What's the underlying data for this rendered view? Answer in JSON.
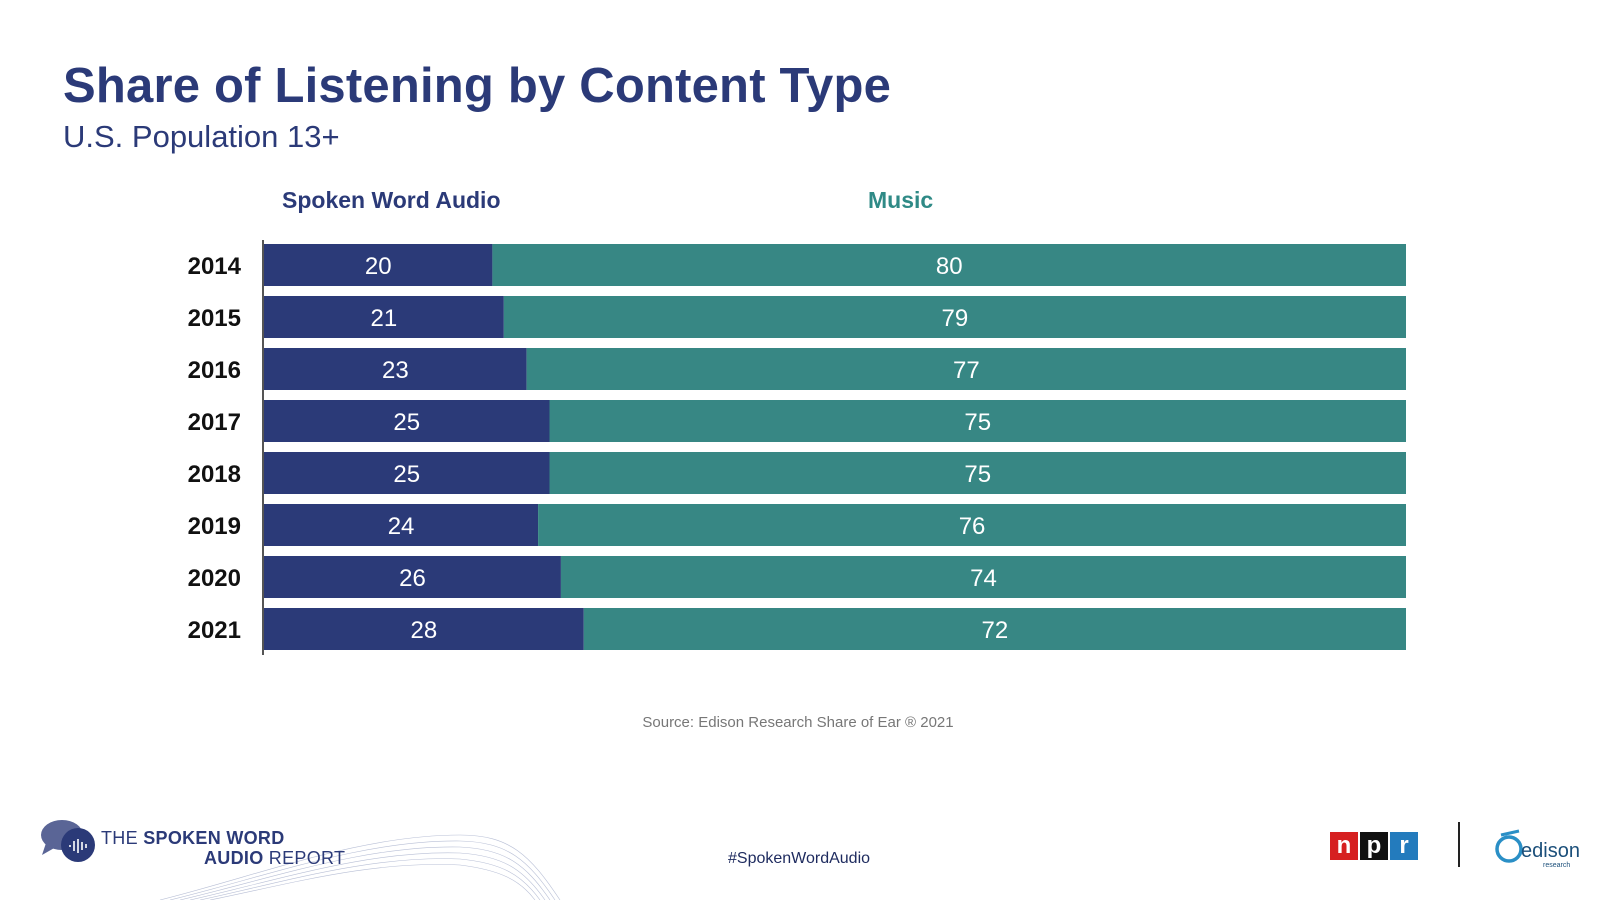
{
  "chart_data": {
    "type": "bar",
    "orientation": "horizontal",
    "stacked": true,
    "title": "Share of Listening by Content Type",
    "subtitle": "U.S. Population 13+",
    "categories": [
      "2014",
      "2015",
      "2016",
      "2017",
      "2018",
      "2019",
      "2020",
      "2021"
    ],
    "series": [
      {
        "name": "Spoken Word Audio",
        "color": "#2b3a78",
        "values": [
          20,
          21,
          23,
          25,
          25,
          24,
          26,
          28
        ]
      },
      {
        "name": "Music",
        "color": "#378784",
        "values": [
          80,
          79,
          77,
          75,
          75,
          76,
          74,
          72
        ]
      }
    ],
    "xlim": [
      0,
      100
    ],
    "legend_colors": {
      "spoken": "#2b3a78",
      "music": "#2f8a86"
    }
  },
  "source": "Source: Edison Research Share of Ear ® 2021",
  "footer": {
    "report_line1_prefix": "THE ",
    "report_line1_bold": "SPOKEN WORD",
    "report_line2_bold": "AUDIO",
    "report_line2_suffix": " REPORT",
    "hashtag": "#SpokenWordAudio",
    "npr_letters": [
      "n",
      "p",
      "r"
    ],
    "npr_colors": [
      "#d62021",
      "#111111",
      "#237bbd"
    ],
    "edison_text": "edison",
    "edison_sub": "research"
  }
}
